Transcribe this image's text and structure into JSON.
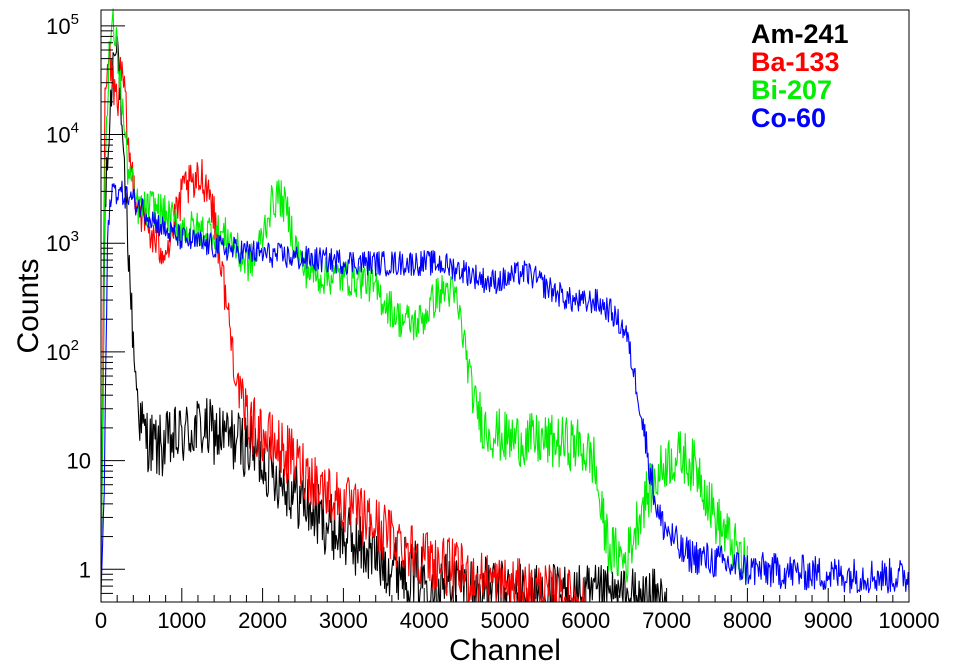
{
  "chart_data": {
    "type": "line",
    "xlabel": "Channel",
    "ylabel": "Counts",
    "xlim": [
      0,
      10000
    ],
    "ylim": [
      0.5,
      140000
    ],
    "y_scale": "log",
    "grid": false,
    "legend_position": "top-right",
    "x_ticks": [
      {
        "value": 0,
        "label": "0"
      },
      {
        "value": 1000,
        "label": "1000"
      },
      {
        "value": 2000,
        "label": "2000"
      },
      {
        "value": 3000,
        "label": "3000"
      },
      {
        "value": 4000,
        "label": "4000"
      },
      {
        "value": 5000,
        "label": "5000"
      },
      {
        "value": 6000,
        "label": "6000"
      },
      {
        "value": 7000,
        "label": "7000"
      },
      {
        "value": 8000,
        "label": "8000"
      },
      {
        "value": 9000,
        "label": "9000"
      },
      {
        "value": 10000,
        "label": "10000"
      }
    ],
    "y_ticks": [
      {
        "value": 1,
        "base": "1",
        "exp": ""
      },
      {
        "value": 10,
        "base": "10",
        "exp": ""
      },
      {
        "value": 100,
        "base": "10",
        "exp": "2"
      },
      {
        "value": 1000,
        "base": "10",
        "exp": "3"
      },
      {
        "value": 10000,
        "base": "10",
        "exp": "4"
      },
      {
        "value": 100000,
        "base": "10",
        "exp": "5"
      }
    ],
    "series": [
      {
        "name": "Am-241",
        "color": "#000000",
        "noise": 0.22,
        "cutoff": 7000,
        "points": [
          [
            0,
            0.6
          ],
          [
            50,
            2000
          ],
          [
            100,
            10000
          ],
          [
            150,
            50000
          ],
          [
            180,
            85000
          ],
          [
            200,
            80000
          ],
          [
            230,
            30000
          ],
          [
            260,
            8000
          ],
          [
            300,
            3000
          ],
          [
            350,
            600
          ],
          [
            400,
            120
          ],
          [
            450,
            40
          ],
          [
            500,
            20
          ],
          [
            600,
            15
          ],
          [
            700,
            13
          ],
          [
            800,
            14
          ],
          [
            1000,
            17
          ],
          [
            1200,
            20
          ],
          [
            1400,
            18
          ],
          [
            1600,
            16
          ],
          [
            1800,
            14
          ],
          [
            2000,
            10
          ],
          [
            2300,
            6
          ],
          [
            2600,
            3.5
          ],
          [
            3000,
            2
          ],
          [
            3500,
            1.2
          ],
          [
            4000,
            0.85
          ],
          [
            4500,
            0.7
          ],
          [
            5000,
            0.6
          ],
          [
            6000,
            0.55
          ],
          [
            7000,
            0.5
          ]
        ]
      },
      {
        "name": "Ba-133",
        "color": "#ff0000",
        "noise": 0.2,
        "cutoff": 6000,
        "points": [
          [
            0,
            0.6
          ],
          [
            50,
            20000
          ],
          [
            100,
            55000
          ],
          [
            150,
            30000
          ],
          [
            200,
            20000
          ],
          [
            250,
            38000
          ],
          [
            300,
            20000
          ],
          [
            350,
            6000
          ],
          [
            450,
            2500
          ],
          [
            550,
            1500
          ],
          [
            700,
            900
          ],
          [
            850,
            1000
          ],
          [
            950,
            2000
          ],
          [
            1050,
            3500
          ],
          [
            1150,
            3200
          ],
          [
            1250,
            4200
          ],
          [
            1350,
            3000
          ],
          [
            1450,
            1000
          ],
          [
            1550,
            300
          ],
          [
            1650,
            80
          ],
          [
            1750,
            30
          ],
          [
            1900,
            20
          ],
          [
            2100,
            15
          ],
          [
            2400,
            10
          ],
          [
            2700,
            6
          ],
          [
            3000,
            4
          ],
          [
            3300,
            2.8
          ],
          [
            3600,
            2
          ],
          [
            4000,
            1.3
          ],
          [
            4500,
            0.9
          ],
          [
            5000,
            0.7
          ],
          [
            5500,
            0.6
          ],
          [
            6000,
            0.5
          ]
        ]
      },
      {
        "name": "Bi-207",
        "color": "#00ee00",
        "noise": 0.18,
        "cutoff": 8000,
        "points": [
          [
            0,
            0.6
          ],
          [
            50,
            5000
          ],
          [
            100,
            60000
          ],
          [
            150,
            100000
          ],
          [
            200,
            60000
          ],
          [
            260,
            20000
          ],
          [
            330,
            5000
          ],
          [
            450,
            2200
          ],
          [
            550,
            2000
          ],
          [
            650,
            2200
          ],
          [
            800,
            1800
          ],
          [
            1000,
            1400
          ],
          [
            1200,
            1300
          ],
          [
            1400,
            1300
          ],
          [
            1600,
            1100
          ],
          [
            1700,
            800
          ],
          [
            1800,
            650
          ],
          [
            1900,
            700
          ],
          [
            2000,
            1200
          ],
          [
            2100,
            2200
          ],
          [
            2200,
            2800
          ],
          [
            2300,
            2000
          ],
          [
            2400,
            1000
          ],
          [
            2500,
            600
          ],
          [
            2700,
            500
          ],
          [
            2900,
            500
          ],
          [
            3100,
            480
          ],
          [
            3300,
            450
          ],
          [
            3500,
            300
          ],
          [
            3700,
            200
          ],
          [
            3900,
            180
          ],
          [
            4000,
            210
          ],
          [
            4150,
            330
          ],
          [
            4300,
            380
          ],
          [
            4400,
            300
          ],
          [
            4500,
            120
          ],
          [
            4600,
            40
          ],
          [
            4750,
            20
          ],
          [
            5000,
            16
          ],
          [
            5500,
            15
          ],
          [
            5900,
            14
          ],
          [
            6100,
            10
          ],
          [
            6200,
            3
          ],
          [
            6300,
            1.5
          ],
          [
            6500,
            1.2
          ],
          [
            6700,
            4
          ],
          [
            7000,
            10
          ],
          [
            7200,
            11
          ],
          [
            7400,
            8
          ],
          [
            7600,
            3
          ],
          [
            8000,
            1
          ]
        ]
      },
      {
        "name": "Co-60",
        "color": "#0000ff",
        "noise": 0.12,
        "cutoff": 10000,
        "points": [
          [
            0,
            0.6
          ],
          [
            40,
            5
          ],
          [
            80,
            1000
          ],
          [
            130,
            3200
          ],
          [
            200,
            3000
          ],
          [
            400,
            2500
          ],
          [
            600,
            1800
          ],
          [
            800,
            1300
          ],
          [
            1000,
            1100
          ],
          [
            1500,
            900
          ],
          [
            2000,
            800
          ],
          [
            2500,
            720
          ],
          [
            3000,
            680
          ],
          [
            3500,
            650
          ],
          [
            4000,
            660
          ],
          [
            4200,
            650
          ],
          [
            4500,
            550
          ],
          [
            4800,
            440
          ],
          [
            5000,
            460
          ],
          [
            5200,
            540
          ],
          [
            5300,
            520
          ],
          [
            5500,
            400
          ],
          [
            5800,
            300
          ],
          [
            6000,
            280
          ],
          [
            6100,
            300
          ],
          [
            6300,
            240
          ],
          [
            6500,
            150
          ],
          [
            6650,
            40
          ],
          [
            6800,
            8
          ],
          [
            6900,
            3
          ],
          [
            7200,
            1.4
          ],
          [
            8000,
            1
          ],
          [
            9000,
            0.9
          ],
          [
            10000,
            0.85
          ]
        ]
      }
    ]
  }
}
